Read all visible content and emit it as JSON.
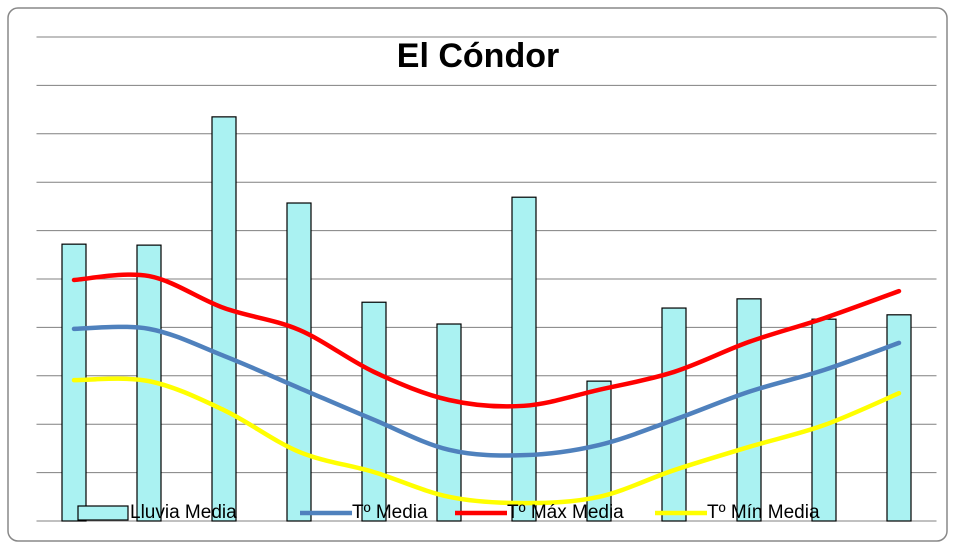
{
  "chart_data": {
    "type": "bar-line",
    "title": "El Cóndor",
    "categories": [
      null,
      null,
      null,
      null,
      null,
      null,
      null,
      null,
      null,
      null,
      null,
      null
    ],
    "ylim": [
      0,
      10
    ],
    "yticks": [
      0,
      1,
      2,
      3,
      4,
      5,
      6,
      7,
      8,
      9,
      10
    ],
    "grid": true,
    "legend": "bottom",
    "series": [
      {
        "name": "Lluvia Media",
        "type": "bar",
        "color": "#aaf2f2",
        "values": [
          5.72,
          5.7,
          8.35,
          6.57,
          4.52,
          4.07,
          6.69,
          2.89,
          4.4,
          4.59,
          4.17,
          4.26
        ]
      },
      {
        "name": "Tº Media",
        "type": "line",
        "color": "#4f81bd",
        "values": [
          3.97,
          3.97,
          3.41,
          2.75,
          2.09,
          1.47,
          1.36,
          1.57,
          2.09,
          2.67,
          3.12,
          3.68
        ]
      },
      {
        "name": "Tº Máx Media",
        "type": "line",
        "color": "#ff0000",
        "values": [
          4.98,
          5.06,
          4.4,
          3.95,
          3.08,
          2.5,
          2.38,
          2.71,
          3.08,
          3.7,
          4.19,
          4.75
        ]
      },
      {
        "name": "Tº Mín Media",
        "type": "line",
        "color": "#ffff00",
        "values": [
          2.91,
          2.89,
          2.29,
          1.43,
          1.01,
          0.5,
          0.37,
          0.5,
          1.05,
          1.53,
          1.98,
          2.64
        ]
      }
    ]
  }
}
